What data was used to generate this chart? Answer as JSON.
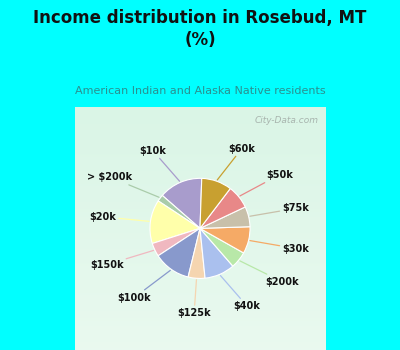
{
  "title": "Income distribution in Rosebud, MT\n(%)",
  "subtitle": "American Indian and Alaska Native residents",
  "title_color": "#111111",
  "subtitle_color": "#2a9090",
  "bg_cyan": "#00ffff",
  "bg_chart_grad_top": "#e8f5f0",
  "bg_chart_grad_bot": "#e0f0e8",
  "watermark": "City-Data.com",
  "labels": [
    "$10k",
    "> $200k",
    "$20k",
    "$150k",
    "$100k",
    "$125k",
    "$40k",
    "$200k",
    "$30k",
    "$75k",
    "$50k",
    "$60k"
  ],
  "values": [
    13,
    2,
    13,
    4,
    11,
    5,
    9,
    5,
    8,
    6,
    7,
    9
  ],
  "colors": [
    "#a89ccc",
    "#aaccaa",
    "#ffffaa",
    "#f0b8c0",
    "#8899cc",
    "#f5d5b0",
    "#aac0ee",
    "#b8e8a8",
    "#f5aa66",
    "#c8c0aa",
    "#e88888",
    "#c8a030"
  ],
  "startangle": 88
}
